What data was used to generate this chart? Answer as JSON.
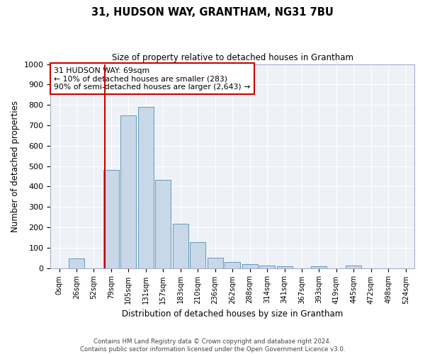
{
  "title": "31, HUDSON WAY, GRANTHAM, NG31 7BU",
  "subtitle": "Size of property relative to detached houses in Grantham",
  "xlabel": "Distribution of detached houses by size in Grantham",
  "ylabel": "Number of detached properties",
  "bar_color": "#c8d8e8",
  "bar_edge_color": "#6699bb",
  "background_color": "#eef2f7",
  "annotation_box_color": "#cc0000",
  "vline_color": "#cc0000",
  "vline_x_index": 2.65,
  "annotation_text": "31 HUDSON WAY: 69sqm\n← 10% of detached houses are smaller (283)\n90% of semi-detached houses are larger (2,643) →",
  "categories": [
    "0sqm",
    "26sqm",
    "52sqm",
    "79sqm",
    "105sqm",
    "131sqm",
    "157sqm",
    "183sqm",
    "210sqm",
    "236sqm",
    "262sqm",
    "288sqm",
    "314sqm",
    "341sqm",
    "367sqm",
    "393sqm",
    "419sqm",
    "445sqm",
    "472sqm",
    "498sqm",
    "524sqm"
  ],
  "values": [
    0,
    46,
    0,
    480,
    748,
    790,
    432,
    218,
    128,
    52,
    30,
    18,
    12,
    10,
    0,
    10,
    0,
    12,
    0,
    0,
    0
  ],
  "ylim": [
    0,
    1000
  ],
  "yticks": [
    0,
    100,
    200,
    300,
    400,
    500,
    600,
    700,
    800,
    900,
    1000
  ],
  "footnote1": "Contains HM Land Registry data © Crown copyright and database right 2024.",
  "footnote2": "Contains public sector information licensed under the Open Government Licence v3.0."
}
